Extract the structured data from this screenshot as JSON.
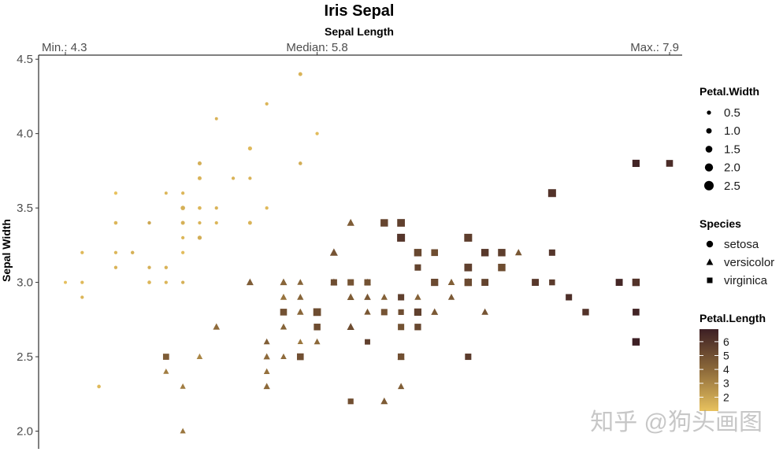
{
  "chart_data": {
    "type": "scatter",
    "title": "Iris Sepal",
    "xlabel": "Sepal Length",
    "ylabel": "Sepal Width",
    "xlim": [
      4.3,
      7.9
    ],
    "ylim": [
      1.9,
      4.5
    ],
    "x_top_ticks": [
      {
        "value": 4.3,
        "label": "Min.: 4.3"
      },
      {
        "value": 5.8,
        "label": "Median: 5.8"
      },
      {
        "value": 7.9,
        "label": "Max.: 7.9"
      }
    ],
    "y_ticks": [
      {
        "value": 2.0,
        "label": "2.0"
      },
      {
        "value": 2.5,
        "label": "2.5"
      },
      {
        "value": 3.0,
        "label": "3.0"
      },
      {
        "value": 3.5,
        "label": "3.5"
      },
      {
        "value": 4.0,
        "label": "4.0"
      },
      {
        "value": 4.5,
        "label": "4.5"
      }
    ],
    "grid": false,
    "legend_position": "right",
    "size_legend": {
      "title": "Petal.Width",
      "items": [
        "0.5",
        "1.0",
        "1.5",
        "2.0",
        "2.5"
      ],
      "values": [
        0.5,
        1.0,
        1.5,
        2.0,
        2.5
      ]
    },
    "shape_legend": {
      "title": "Species",
      "items": [
        {
          "label": "setosa",
          "shape": "circle"
        },
        {
          "label": "versicolor",
          "shape": "triangle"
        },
        {
          "label": "virginica",
          "shape": "square"
        }
      ]
    },
    "color_legend": {
      "title": "Petal.Length",
      "ticks": [
        "2",
        "3",
        "4",
        "5",
        "6"
      ],
      "tick_values": [
        2,
        3,
        4,
        5,
        6
      ],
      "range": [
        1.0,
        6.9
      ],
      "low_color": "#e8c25e",
      "high_color": "#3d1f24"
    },
    "series": [
      {
        "name": "setosa",
        "points": [
          [
            5.1,
            3.5,
            1.4,
            0.2
          ],
          [
            4.9,
            3.0,
            1.4,
            0.2
          ],
          [
            4.7,
            3.2,
            1.3,
            0.2
          ],
          [
            4.6,
            3.1,
            1.5,
            0.2
          ],
          [
            5.0,
            3.6,
            1.4,
            0.2
          ],
          [
            5.4,
            3.9,
            1.7,
            0.4
          ],
          [
            4.6,
            3.4,
            1.4,
            0.3
          ],
          [
            5.0,
            3.4,
            1.5,
            0.2
          ],
          [
            4.4,
            2.9,
            1.4,
            0.2
          ],
          [
            4.9,
            3.1,
            1.5,
            0.1
          ],
          [
            5.4,
            3.7,
            1.5,
            0.2
          ],
          [
            4.8,
            3.4,
            1.6,
            0.2
          ],
          [
            4.8,
            3.0,
            1.4,
            0.1
          ],
          [
            4.3,
            3.0,
            1.1,
            0.1
          ],
          [
            5.8,
            4.0,
            1.2,
            0.2
          ],
          [
            5.7,
            4.4,
            1.5,
            0.4
          ],
          [
            5.4,
            3.9,
            1.3,
            0.4
          ],
          [
            5.1,
            3.5,
            1.4,
            0.3
          ],
          [
            5.7,
            3.8,
            1.7,
            0.3
          ],
          [
            5.1,
            3.8,
            1.5,
            0.3
          ],
          [
            5.4,
            3.4,
            1.7,
            0.2
          ],
          [
            5.1,
            3.7,
            1.5,
            0.4
          ],
          [
            4.6,
            3.6,
            1.0,
            0.2
          ],
          [
            5.1,
            3.3,
            1.7,
            0.5
          ],
          [
            4.8,
            3.4,
            1.9,
            0.2
          ],
          [
            5.0,
            3.0,
            1.6,
            0.2
          ],
          [
            5.0,
            3.4,
            1.6,
            0.4
          ],
          [
            5.2,
            3.5,
            1.5,
            0.2
          ],
          [
            5.2,
            3.4,
            1.4,
            0.2
          ],
          [
            4.7,
            3.2,
            1.6,
            0.2
          ],
          [
            4.8,
            3.1,
            1.6,
            0.2
          ],
          [
            5.4,
            3.4,
            1.5,
            0.4
          ],
          [
            5.2,
            4.1,
            1.5,
            0.1
          ],
          [
            5.5,
            4.2,
            1.4,
            0.2
          ],
          [
            4.9,
            3.1,
            1.5,
            0.2
          ],
          [
            5.0,
            3.2,
            1.2,
            0.2
          ],
          [
            5.5,
            3.5,
            1.3,
            0.2
          ],
          [
            4.9,
            3.6,
            1.4,
            0.1
          ],
          [
            4.4,
            3.0,
            1.3,
            0.2
          ],
          [
            5.1,
            3.4,
            1.5,
            0.2
          ],
          [
            5.0,
            3.5,
            1.3,
            0.3
          ],
          [
            4.5,
            2.3,
            1.3,
            0.3
          ],
          [
            4.4,
            3.2,
            1.3,
            0.2
          ],
          [
            5.0,
            3.5,
            1.6,
            0.6
          ],
          [
            5.1,
            3.8,
            1.9,
            0.4
          ],
          [
            4.8,
            3.0,
            1.4,
            0.3
          ],
          [
            5.1,
            3.8,
            1.6,
            0.2
          ],
          [
            4.6,
            3.2,
            1.4,
            0.2
          ],
          [
            5.3,
            3.7,
            1.5,
            0.2
          ],
          [
            5.0,
            3.3,
            1.4,
            0.2
          ]
        ]
      },
      {
        "name": "versicolor",
        "points": [
          [
            7.0,
            3.2,
            4.7,
            1.4
          ],
          [
            6.4,
            3.2,
            4.5,
            1.5
          ],
          [
            6.9,
            3.1,
            4.9,
            1.5
          ],
          [
            5.5,
            2.3,
            4.0,
            1.3
          ],
          [
            6.5,
            2.8,
            4.6,
            1.5
          ],
          [
            5.7,
            2.8,
            4.5,
            1.3
          ],
          [
            6.3,
            3.3,
            4.7,
            1.6
          ],
          [
            4.9,
            2.4,
            3.3,
            1.0
          ],
          [
            6.6,
            2.9,
            4.6,
            1.3
          ],
          [
            5.2,
            2.7,
            3.9,
            1.4
          ],
          [
            5.0,
            2.0,
            3.5,
            1.0
          ],
          [
            5.9,
            3.0,
            4.2,
            1.5
          ],
          [
            6.0,
            2.2,
            4.0,
            1.0
          ],
          [
            6.1,
            2.9,
            4.7,
            1.4
          ],
          [
            5.6,
            2.9,
            3.6,
            1.3
          ],
          [
            6.7,
            3.1,
            4.4,
            1.4
          ],
          [
            5.6,
            3.0,
            4.5,
            1.5
          ],
          [
            5.8,
            2.7,
            4.1,
            1.0
          ],
          [
            6.2,
            2.2,
            4.5,
            1.5
          ],
          [
            5.6,
            2.5,
            3.9,
            1.1
          ],
          [
            5.9,
            3.2,
            4.8,
            1.8
          ],
          [
            6.1,
            2.8,
            4.0,
            1.3
          ],
          [
            6.3,
            2.5,
            4.9,
            1.5
          ],
          [
            6.1,
            2.8,
            4.7,
            1.2
          ],
          [
            6.4,
            2.9,
            4.3,
            1.3
          ],
          [
            6.6,
            3.0,
            4.4,
            1.4
          ],
          [
            6.8,
            2.8,
            4.8,
            1.4
          ],
          [
            6.7,
            3.0,
            5.0,
            1.7
          ],
          [
            6.0,
            2.9,
            4.5,
            1.5
          ],
          [
            5.7,
            2.6,
            3.5,
            1.0
          ],
          [
            5.5,
            2.4,
            3.8,
            1.1
          ],
          [
            5.5,
            2.4,
            3.7,
            1.0
          ],
          [
            5.8,
            2.7,
            3.9,
            1.2
          ],
          [
            6.0,
            2.7,
            5.1,
            1.6
          ],
          [
            5.4,
            3.0,
            4.5,
            1.5
          ],
          [
            6.0,
            3.4,
            4.5,
            1.6
          ],
          [
            6.7,
            3.1,
            4.7,
            1.5
          ],
          [
            6.3,
            2.3,
            4.4,
            1.3
          ],
          [
            5.6,
            3.0,
            4.1,
            1.3
          ],
          [
            5.5,
            2.5,
            4.0,
            1.3
          ],
          [
            5.5,
            2.6,
            4.4,
            1.2
          ],
          [
            6.1,
            3.0,
            4.6,
            1.4
          ],
          [
            5.8,
            2.6,
            4.0,
            1.2
          ],
          [
            5.0,
            2.3,
            3.3,
            1.0
          ],
          [
            5.6,
            2.7,
            4.2,
            1.3
          ],
          [
            5.7,
            3.0,
            4.2,
            1.2
          ],
          [
            5.7,
            2.9,
            4.2,
            1.3
          ],
          [
            6.2,
            2.9,
            4.3,
            1.3
          ],
          [
            5.1,
            2.5,
            3.0,
            1.1
          ],
          [
            5.7,
            2.8,
            4.1,
            1.3
          ]
        ]
      },
      {
        "name": "virginica",
        "points": [
          [
            6.3,
            3.3,
            6.0,
            2.5
          ],
          [
            5.8,
            2.7,
            5.1,
            1.9
          ],
          [
            7.1,
            3.0,
            5.9,
            2.1
          ],
          [
            6.3,
            2.9,
            5.6,
            1.8
          ],
          [
            6.5,
            3.0,
            5.8,
            2.2
          ],
          [
            7.6,
            3.0,
            6.6,
            2.1
          ],
          [
            4.9,
            2.5,
            4.5,
            1.7
          ],
          [
            7.3,
            2.9,
            6.3,
            1.8
          ],
          [
            6.7,
            2.5,
            5.8,
            1.8
          ],
          [
            7.2,
            3.6,
            6.1,
            2.5
          ],
          [
            6.5,
            3.2,
            5.1,
            2.0
          ],
          [
            6.4,
            2.7,
            5.3,
            1.9
          ],
          [
            6.8,
            3.0,
            5.5,
            2.1
          ],
          [
            5.7,
            2.5,
            5.0,
            2.0
          ],
          [
            5.8,
            2.8,
            5.1,
            2.4
          ],
          [
            6.4,
            3.2,
            5.3,
            2.3
          ],
          [
            6.5,
            3.0,
            5.5,
            1.8
          ],
          [
            7.7,
            3.8,
            6.7,
            2.2
          ],
          [
            7.7,
            2.6,
            6.9,
            2.3
          ],
          [
            6.0,
            2.2,
            5.0,
            1.5
          ],
          [
            6.9,
            3.2,
            5.7,
            2.3
          ],
          [
            5.6,
            2.8,
            4.9,
            2.0
          ],
          [
            7.7,
            2.8,
            6.7,
            2.0
          ],
          [
            6.3,
            2.7,
            4.9,
            1.8
          ],
          [
            6.7,
            3.3,
            5.7,
            2.1
          ],
          [
            7.2,
            3.2,
            6.0,
            1.8
          ],
          [
            6.2,
            2.8,
            4.8,
            1.8
          ],
          [
            6.1,
            3.0,
            4.9,
            1.8
          ],
          [
            6.4,
            2.8,
            5.6,
            2.1
          ],
          [
            7.2,
            3.0,
            5.8,
            1.6
          ],
          [
            7.4,
            2.8,
            6.1,
            1.9
          ],
          [
            7.9,
            3.8,
            6.4,
            2.0
          ],
          [
            6.4,
            2.8,
            5.6,
            2.2
          ],
          [
            6.3,
            2.8,
            5.1,
            1.5
          ],
          [
            6.1,
            2.6,
            5.6,
            1.4
          ],
          [
            7.7,
            3.0,
            6.1,
            2.3
          ],
          [
            6.3,
            3.4,
            5.6,
            2.4
          ],
          [
            6.4,
            3.1,
            5.5,
            1.8
          ],
          [
            6.0,
            3.0,
            4.8,
            1.8
          ],
          [
            6.9,
            3.1,
            5.4,
            2.1
          ],
          [
            6.7,
            3.1,
            5.6,
            2.4
          ],
          [
            6.9,
            3.1,
            5.1,
            2.3
          ],
          [
            5.8,
            2.7,
            5.1,
            1.9
          ],
          [
            6.8,
            3.2,
            5.9,
            2.3
          ],
          [
            6.7,
            3.3,
            5.7,
            2.5
          ],
          [
            6.7,
            3.0,
            5.2,
            2.3
          ],
          [
            6.3,
            2.5,
            5.0,
            1.9
          ],
          [
            6.5,
            3.0,
            5.2,
            2.0
          ],
          [
            6.2,
            3.4,
            5.4,
            2.3
          ],
          [
            5.9,
            3.0,
            5.1,
            1.8
          ]
        ]
      }
    ]
  },
  "watermark": "知乎 @狗头画图"
}
